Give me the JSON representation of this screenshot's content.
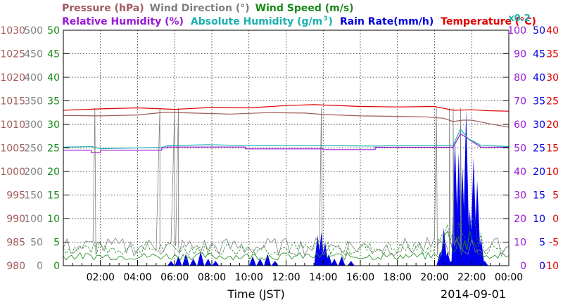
{
  "legend": {
    "row1": [
      {
        "text": "Pressure (hPa)",
        "color": "#a05a5a"
      },
      {
        "text": "Wind Direction (°)",
        "color": "#808080"
      },
      {
        "text": "Wind Speed (m/s)",
        "color": "#1a8a1a"
      }
    ],
    "row2": [
      {
        "text": "Relative Humidity (%)",
        "color": "#9a1ad6"
      },
      {
        "text": "Absolute Humidity (g/m",
        "sup": "3",
        "tail": ")",
        "color": "#1ab0b0"
      },
      {
        "text": "Rain Rate(mm/h)",
        "color": "#0000dd"
      },
      {
        "text": "Temperature (°C)",
        "color": "#dd0000"
      }
    ],
    "scale_note": "x0.2"
  },
  "xlabel": "Time (JST)",
  "date": "2014-09-01",
  "chart_data": {
    "type": "line",
    "x_ticks": [
      "02:00",
      "04:00",
      "06:00",
      "08:00",
      "10:00",
      "12:00",
      "14:00",
      "16:00",
      "18:00",
      "20:00",
      "22:00",
      "00:00"
    ],
    "xlim_hours": [
      0,
      24
    ],
    "axes": {
      "pressure": {
        "ticks": [
          980,
          985,
          990,
          995,
          1000,
          1005,
          1010,
          1015,
          1020,
          1025,
          1030
        ],
        "color": "#a05a5a",
        "ylim": [
          980,
          1030
        ]
      },
      "wind_direction": {
        "ticks": [
          0,
          50,
          100,
          150,
          200,
          250,
          300,
          350,
          400,
          450,
          500
        ],
        "color": "#808080",
        "ylim": [
          0,
          500
        ]
      },
      "wind_speed": {
        "ticks": [
          0,
          5,
          10,
          15,
          20,
          25,
          30,
          35,
          40,
          45,
          50
        ],
        "color": "#1a8a1a",
        "ylim": [
          0,
          50
        ]
      },
      "humidity": {
        "ticks": [
          0,
          10,
          20,
          30,
          40,
          50,
          60,
          70,
          80,
          90,
          100
        ],
        "color": "#9a1ad6",
        "ylim": [
          0,
          100
        ]
      },
      "rain_rate": {
        "ticks": [
          0,
          5,
          10,
          15,
          20,
          25,
          30,
          35,
          40,
          45,
          50
        ],
        "color": "#0000dd",
        "ylim": [
          0,
          50
        ]
      },
      "temperature": {
        "ticks": [
          -10,
          -5,
          0,
          5,
          10,
          15,
          20,
          25,
          30,
          35,
          40
        ],
        "color": "#dd0000",
        "ylim": [
          -10,
          40
        ]
      }
    },
    "series": [
      {
        "name": "Temperature (°C)",
        "axis": "temperature",
        "color": "#dd0000",
        "x": [
          0,
          2,
          4,
          6,
          8,
          10,
          12,
          13.5,
          16,
          18,
          20,
          21,
          22,
          23,
          24
        ],
        "y": [
          23.0,
          23.3,
          23.5,
          23.2,
          23.6,
          23.5,
          24.0,
          24.2,
          23.8,
          23.7,
          23.8,
          23.0,
          23.1,
          22.9,
          22.8
        ]
      },
      {
        "name": "Pressure (hPa)",
        "axis": "pressure",
        "color": "#a05a5a",
        "x": [
          0,
          2,
          4,
          5.5,
          7,
          9,
          11,
          13,
          14,
          16,
          18,
          19.5,
          20.5,
          21,
          21.5,
          22,
          23,
          24
        ],
        "y": [
          1011.9,
          1011.8,
          1012.0,
          1012.6,
          1012.4,
          1012.2,
          1012.5,
          1012.4,
          1012.1,
          1011.8,
          1011.7,
          1011.6,
          1011.3,
          1010.6,
          1010.9,
          1010.9,
          1010.1,
          1009.4
        ]
      },
      {
        "name": "Relative Humidity (%)",
        "axis": "humidity",
        "color": "#9a1ad6",
        "x": [
          0,
          1.5,
          1.5,
          2.0,
          2.0,
          5.3,
          5.3,
          5.6,
          5.6,
          9.8,
          9.8,
          14,
          14,
          16.8,
          16.8,
          21,
          21.4,
          22.5,
          24
        ],
        "y": [
          49.0,
          49.0,
          48.0,
          48.0,
          49.0,
          49.0,
          50.0,
          50.0,
          50.4,
          50.4,
          49.6,
          49.6,
          49.3,
          49.3,
          50.3,
          50.3,
          56,
          50.3,
          50.3
        ]
      },
      {
        "name": "Absolute Humidity (g/m3)",
        "axis": "humidity",
        "color": "#1ab0b0",
        "x": [
          0,
          1.5,
          2.0,
          5.3,
          5.6,
          7.8,
          9.8,
          12,
          14,
          16.8,
          18,
          20,
          21,
          21.4,
          21.8,
          22.5,
          24
        ],
        "y": [
          50.3,
          50.6,
          49.7,
          50.2,
          50.9,
          51.4,
          51.0,
          51.1,
          51.0,
          50.8,
          51.0,
          51.1,
          51.2,
          58,
          54,
          51.1,
          50.6
        ]
      }
    ],
    "wind_direction_spikes_hours": [
      1.7,
      5.2,
      6.0,
      6.2,
      13.9,
      20.1,
      20.8,
      21.0,
      21.4
    ],
    "rain_rate": {
      "x": [
        5.8,
        6.2,
        6.6,
        7.0,
        7.4,
        7.8,
        8.2,
        10.2,
        10.6,
        11.0,
        11.4,
        13.7,
        13.9,
        14.1,
        14.3,
        14.6,
        15.0,
        15.5,
        20.3,
        20.5,
        20.7,
        20.9,
        21.1,
        21.3,
        21.5,
        21.7,
        21.9,
        22.1,
        22.3,
        22.5,
        22.7
      ],
      "y": [
        1.0,
        2.0,
        2.5,
        1.5,
        3.0,
        1.5,
        1.0,
        2.0,
        1.5,
        2.5,
        1.0,
        6.5,
        7.0,
        5.0,
        2.5,
        1.5,
        2.0,
        1.0,
        3.0,
        8.0,
        3.0,
        1.0,
        27.0,
        24.0,
        21.0,
        33.0,
        12.0,
        23.0,
        18.0,
        6.0,
        1.0
      ]
    }
  }
}
